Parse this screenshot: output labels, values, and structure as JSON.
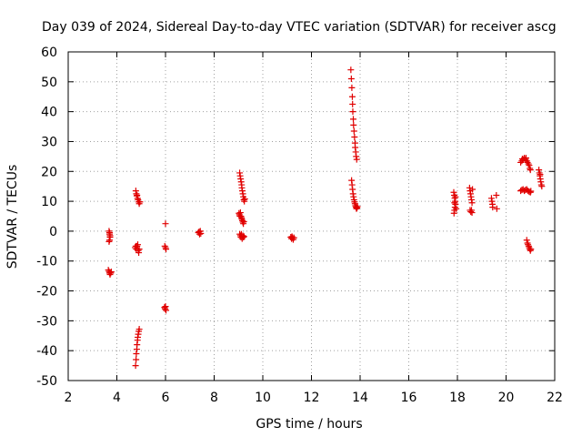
{
  "chart_data": {
    "type": "scatter",
    "title": "Day 039 of 2024, Sidereal Day-to-day VTEC variation (SDTVAR) for receiver ascg",
    "xlabel": "GPS time / hours",
    "ylabel": "SDTVAR / TECUs",
    "xlim": [
      2,
      22
    ],
    "ylim": [
      -50,
      60
    ],
    "xticks": [
      "2",
      "4",
      "6",
      "8",
      "10",
      "12",
      "14",
      "16",
      "18",
      "20",
      "22"
    ],
    "yticks": [
      "-50",
      "-40",
      "-30",
      "-20",
      "-10",
      "0",
      "10",
      "20",
      "30",
      "40",
      "50",
      "60"
    ],
    "grid": true,
    "marker": "+",
    "color": "#e00000",
    "series": [
      {
        "name": "SDTVAR",
        "points": [
          [
            3.68,
            0.0
          ],
          [
            3.7,
            -1.0
          ],
          [
            3.72,
            -2.0
          ],
          [
            3.7,
            -3.0
          ],
          [
            3.68,
            -3.5
          ],
          [
            3.72,
            -1.5
          ],
          [
            3.7,
            -0.5
          ],
          [
            3.65,
            -13.0
          ],
          [
            3.68,
            -13.5
          ],
          [
            3.7,
            -14.0
          ],
          [
            3.72,
            -14.5
          ],
          [
            3.75,
            -14.0
          ],
          [
            3.77,
            -13.6
          ],
          [
            4.78,
            13.5
          ],
          [
            4.8,
            12.5
          ],
          [
            4.82,
            11.8
          ],
          [
            4.85,
            11.0
          ],
          [
            4.87,
            10.5
          ],
          [
            4.9,
            9.8
          ],
          [
            4.92,
            9.2
          ],
          [
            4.95,
            9.8
          ],
          [
            4.83,
            12.0
          ],
          [
            4.75,
            -5.5
          ],
          [
            4.78,
            -5.0
          ],
          [
            4.8,
            -6.0
          ],
          [
            4.83,
            -5.0
          ],
          [
            4.86,
            -4.5
          ],
          [
            4.88,
            -6.5
          ],
          [
            4.9,
            -7.2
          ],
          [
            4.92,
            -6.0
          ],
          [
            4.77,
            -45.0
          ],
          [
            4.79,
            -43.0
          ],
          [
            4.8,
            -41.0
          ],
          [
            4.82,
            -39.5
          ],
          [
            4.83,
            -38.0
          ],
          [
            4.85,
            -36.5
          ],
          [
            4.86,
            -35.5
          ],
          [
            4.88,
            -34.5
          ],
          [
            4.9,
            -33.5
          ],
          [
            4.92,
            -32.8
          ],
          [
            6.0,
            2.5
          ],
          [
            5.97,
            -5.0
          ],
          [
            6.0,
            -5.5
          ],
          [
            6.02,
            -6.0
          ],
          [
            5.96,
            -25.5
          ],
          [
            5.98,
            -26.0
          ],
          [
            6.0,
            -25.2
          ],
          [
            6.02,
            -26.5
          ],
          [
            7.35,
            -0.5
          ],
          [
            7.4,
            -1.0
          ],
          [
            7.43,
            0.0
          ],
          [
            7.45,
            -0.8
          ],
          [
            7.38,
            -0.2
          ],
          [
            9.05,
            19.5
          ],
          [
            9.07,
            18.5
          ],
          [
            9.09,
            17.5
          ],
          [
            9.11,
            16.5
          ],
          [
            9.13,
            15.5
          ],
          [
            9.14,
            14.5
          ],
          [
            9.16,
            13.5
          ],
          [
            9.18,
            12.5
          ],
          [
            9.2,
            11.5
          ],
          [
            9.22,
            10.5
          ],
          [
            9.24,
            10.0
          ],
          [
            9.26,
            10.8
          ],
          [
            9.02,
            6.0
          ],
          [
            9.04,
            5.5
          ],
          [
            9.06,
            5.0
          ],
          [
            9.08,
            6.2
          ],
          [
            9.1,
            5.0
          ],
          [
            9.12,
            4.5
          ],
          [
            9.14,
            4.0
          ],
          [
            9.16,
            3.5
          ],
          [
            9.18,
            3.0
          ],
          [
            9.2,
            2.5
          ],
          [
            9.22,
            3.2
          ],
          [
            9.05,
            -1.0
          ],
          [
            9.08,
            -1.5
          ],
          [
            9.1,
            -2.0
          ],
          [
            9.12,
            -1.0
          ],
          [
            9.15,
            -2.5
          ],
          [
            9.18,
            -1.5
          ],
          [
            9.2,
            -2.0
          ],
          [
            9.23,
            -1.8
          ],
          [
            11.15,
            -2.0
          ],
          [
            11.18,
            -2.5
          ],
          [
            11.2,
            -1.8
          ],
          [
            11.22,
            -2.2
          ],
          [
            11.25,
            -2.8
          ],
          [
            11.28,
            -2.2
          ],
          [
            13.62,
            54.0
          ],
          [
            13.64,
            51.0
          ],
          [
            13.66,
            48.0
          ],
          [
            13.68,
            45.0
          ],
          [
            13.69,
            42.5
          ],
          [
            13.7,
            40.0
          ],
          [
            13.72,
            37.5
          ],
          [
            13.73,
            35.5
          ],
          [
            13.75,
            33.5
          ],
          [
            13.77,
            31.5
          ],
          [
            13.79,
            29.5
          ],
          [
            13.8,
            28.0
          ],
          [
            13.82,
            26.5
          ],
          [
            13.84,
            25.0
          ],
          [
            13.86,
            24.0
          ],
          [
            13.65,
            17.0
          ],
          [
            13.67,
            15.5
          ],
          [
            13.69,
            14.0
          ],
          [
            13.71,
            12.5
          ],
          [
            13.73,
            11.5
          ],
          [
            13.75,
            10.5
          ],
          [
            13.77,
            9.8
          ],
          [
            13.79,
            9.2
          ],
          [
            13.81,
            8.5
          ],
          [
            13.83,
            8.0
          ],
          [
            13.85,
            7.5
          ],
          [
            13.87,
            7.8
          ],
          [
            13.89,
            8.2
          ],
          [
            17.85,
            13.0
          ],
          [
            17.87,
            12.0
          ],
          [
            17.89,
            11.0
          ],
          [
            17.91,
            10.0
          ],
          [
            17.92,
            9.0
          ],
          [
            17.9,
            8.0
          ],
          [
            17.88,
            7.0
          ],
          [
            17.86,
            6.0
          ],
          [
            17.88,
            9.5
          ],
          [
            17.92,
            11.5
          ],
          [
            17.95,
            7.5
          ],
          [
            18.5,
            14.5
          ],
          [
            18.52,
            13.5
          ],
          [
            18.54,
            12.5
          ],
          [
            18.56,
            11.5
          ],
          [
            18.58,
            10.5
          ],
          [
            18.6,
            9.5
          ],
          [
            18.52,
            7.0
          ],
          [
            18.55,
            6.5
          ],
          [
            18.58,
            7.0
          ],
          [
            18.6,
            6.2
          ],
          [
            18.62,
            14.0
          ],
          [
            19.4,
            11.0
          ],
          [
            19.42,
            10.0
          ],
          [
            19.44,
            9.0
          ],
          [
            19.45,
            8.0
          ],
          [
            19.6,
            12.0
          ],
          [
            19.62,
            7.5
          ],
          [
            20.6,
            23.0
          ],
          [
            20.65,
            23.5
          ],
          [
            20.7,
            24.0
          ],
          [
            20.75,
            24.5
          ],
          [
            20.8,
            24.0
          ],
          [
            20.85,
            23.5
          ],
          [
            20.88,
            23.0
          ],
          [
            20.92,
            22.5
          ],
          [
            20.95,
            22.0
          ],
          [
            20.98,
            21.0
          ],
          [
            21.0,
            20.5
          ],
          [
            20.67,
            24.2
          ],
          [
            20.82,
            24.5
          ],
          [
            20.6,
            13.5
          ],
          [
            20.65,
            13.8
          ],
          [
            20.7,
            14.0
          ],
          [
            20.75,
            13.5
          ],
          [
            20.8,
            13.8
          ],
          [
            20.85,
            14.0
          ],
          [
            20.9,
            13.5
          ],
          [
            20.95,
            13.2
          ],
          [
            21.0,
            13.0
          ],
          [
            21.02,
            13.4
          ],
          [
            20.85,
            -3.0
          ],
          [
            20.88,
            -4.0
          ],
          [
            20.9,
            -4.5
          ],
          [
            20.93,
            -5.0
          ],
          [
            20.95,
            -5.5
          ],
          [
            20.98,
            -6.0
          ],
          [
            21.0,
            -6.5
          ],
          [
            21.02,
            -6.0
          ],
          [
            21.35,
            20.5
          ],
          [
            21.37,
            19.5
          ],
          [
            21.39,
            18.5
          ],
          [
            21.41,
            17.5
          ],
          [
            21.43,
            16.5
          ],
          [
            21.45,
            15.5
          ],
          [
            21.47,
            15.0
          ],
          [
            21.4,
            19.0
          ]
        ]
      }
    ]
  }
}
